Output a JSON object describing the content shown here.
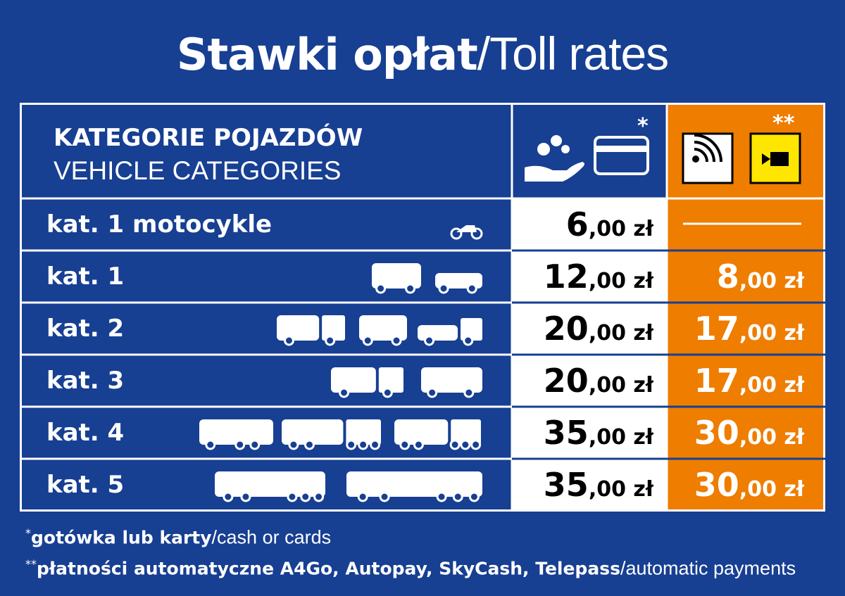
{
  "title": {
    "bold": "Stawki opłat",
    "light": "/Toll rates"
  },
  "header": {
    "category_pl": "KATEGORIE POJAZDÓW",
    "category_en": "VEHICLE CATEGORIES",
    "manual_mark": "*",
    "automatic_mark": "**"
  },
  "rows": [
    {
      "label": "kat. 1 motocykle",
      "manual": "6,00 zł",
      "automatic": null
    },
    {
      "label": "kat. 1",
      "manual": "12,00 zł",
      "automatic": "8,00 zł"
    },
    {
      "label": "kat. 2",
      "manual": "20,00 zł",
      "automatic": "17,00 zł"
    },
    {
      "label": "kat. 3",
      "manual": "20,00 zł",
      "automatic": "17,00 zł"
    },
    {
      "label": "kat. 4",
      "manual": "35,00 zł",
      "automatic": "30,00 zł"
    },
    {
      "label": "kat. 5",
      "manual": "35,00 zł",
      "automatic": "30,00 zł"
    }
  ],
  "footnotes": [
    {
      "mark": "*",
      "bold": "gotówka lub karty",
      "light": "/cash or cards"
    },
    {
      "mark": "**",
      "bold": "płatności automatyczne A4Go, Autopay, SkyCash, Telepass",
      "light": "/automatic payments"
    }
  ]
}
